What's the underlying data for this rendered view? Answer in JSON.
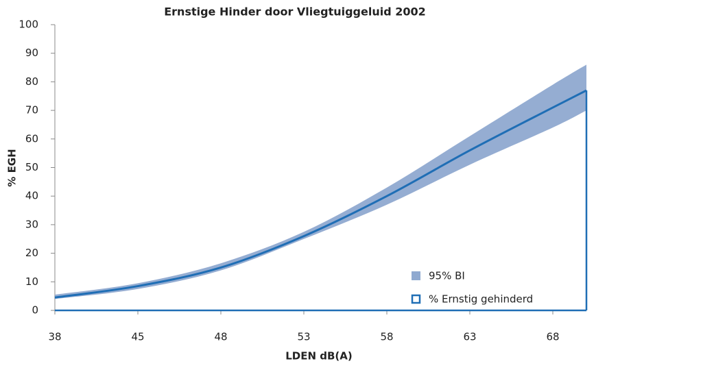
{
  "chart_data": {
    "type": "line",
    "title": "Ernstige Hinder door Vliegtuiggeluid 2002",
    "x_label": "LDEN dB(A)",
    "y_label": "% EGH",
    "categories": [
      "38",
      "45",
      "48",
      "53",
      "58",
      "63",
      "68",
      null
    ],
    "series": [
      {
        "name": "% Ernstig gehinderd",
        "color": "#1f6eb5",
        "values": [
          4.5,
          8.5,
          15,
          26,
          40,
          56,
          71,
          77
        ]
      }
    ],
    "band": {
      "name": "95% BI",
      "color": "#8fa9d0",
      "lower": [
        4,
        7.5,
        14,
        25,
        37,
        51,
        64,
        70
      ],
      "upper": [
        5.5,
        9.5,
        16.5,
        27.5,
        43,
        61,
        79,
        86
      ]
    },
    "ylim": [
      0,
      100
    ],
    "yticks": [
      0,
      10,
      20,
      30,
      40,
      50,
      60,
      70,
      80,
      90,
      100
    ],
    "grid": false,
    "legend": "bottom-right"
  }
}
